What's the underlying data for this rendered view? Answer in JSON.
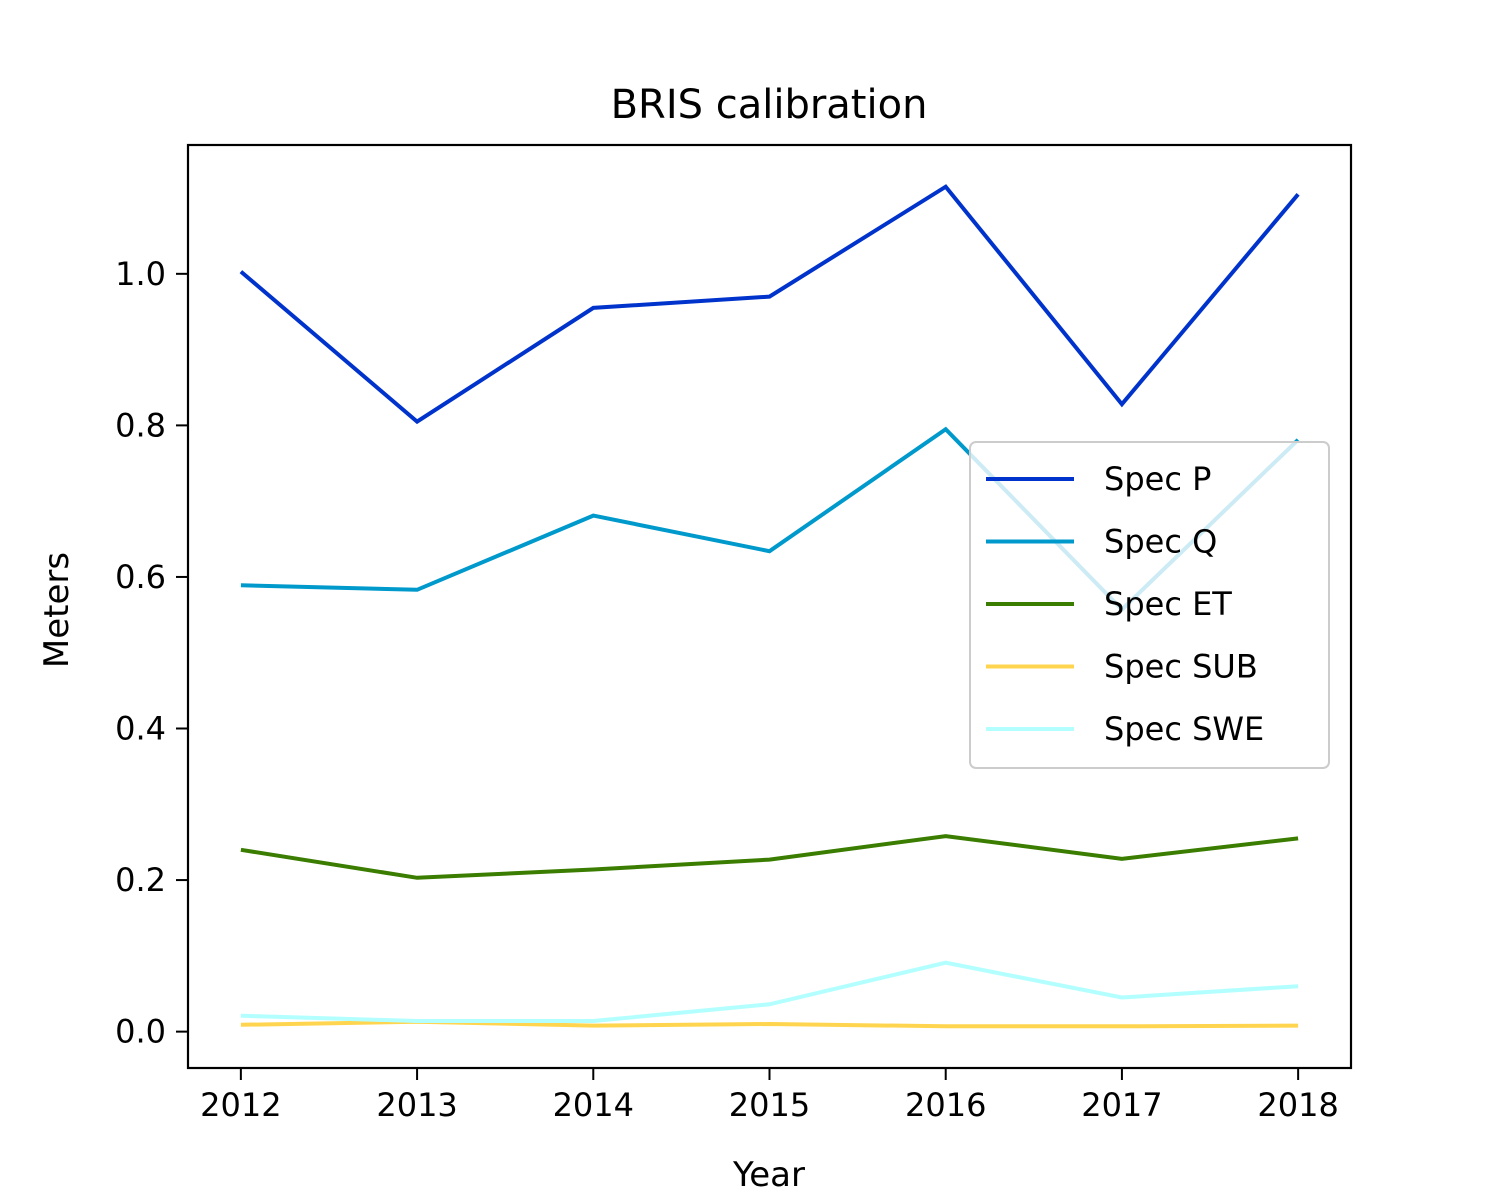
{
  "chart_data": {
    "type": "line",
    "title": "BRIS calibration",
    "xlabel": "Year",
    "ylabel": "Meters",
    "x": [
      2012,
      2013,
      2014,
      2015,
      2016,
      2017,
      2018
    ],
    "x_ticks": [
      "2012",
      "2013",
      "2014",
      "2015",
      "2016",
      "2017",
      "2018"
    ],
    "y_ticks": [
      "0.0",
      "0.2",
      "0.4",
      "0.6",
      "0.8",
      "1.0"
    ],
    "xlim": [
      2011.7,
      2018.3
    ],
    "ylim": [
      -0.048,
      1.17
    ],
    "grid": false,
    "legend_position": "center-right",
    "series": [
      {
        "name": "Spec P",
        "color": "#0033cc",
        "values": [
          1.003,
          0.805,
          0.955,
          0.97,
          1.115,
          0.828,
          1.105
        ]
      },
      {
        "name": "Spec Q",
        "color": "#0099cc",
        "values": [
          0.589,
          0.583,
          0.681,
          0.634,
          0.795,
          0.557,
          0.781
        ]
      },
      {
        "name": "Spec ET",
        "color": "#3a7d00",
        "values": [
          0.24,
          0.203,
          0.214,
          0.227,
          0.258,
          0.228,
          0.255
        ]
      },
      {
        "name": "Spec SUB",
        "color": "#ffd54f",
        "values": [
          0.009,
          0.013,
          0.008,
          0.01,
          0.007,
          0.007,
          0.008
        ]
      },
      {
        "name": "Spec SWE",
        "color": "#b3ffff",
        "values": [
          0.021,
          0.014,
          0.014,
          0.036,
          0.091,
          0.045,
          0.06
        ]
      }
    ]
  }
}
